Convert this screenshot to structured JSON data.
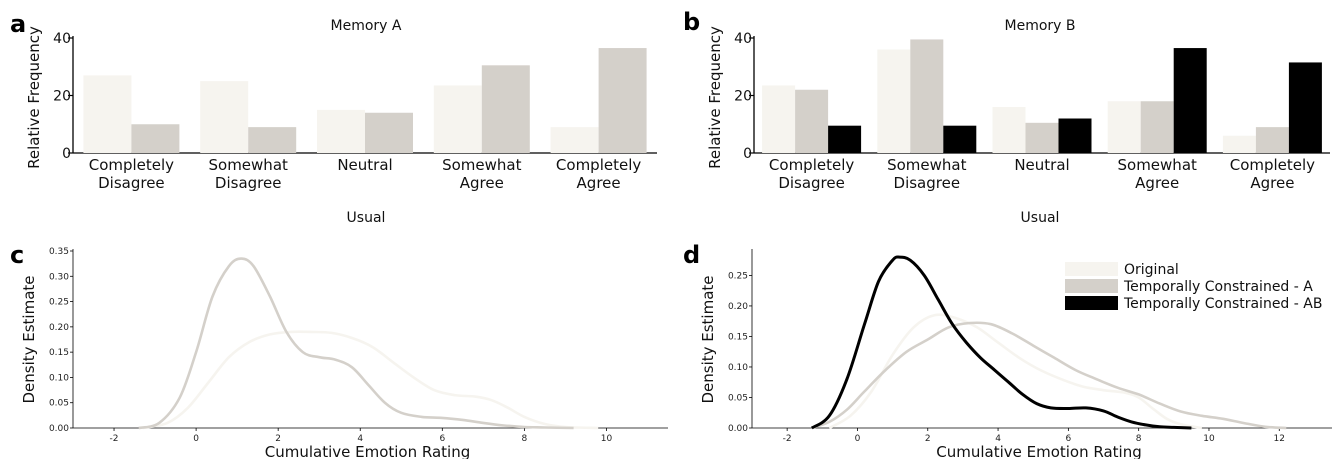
{
  "colors": {
    "original": "#f6f4ef",
    "constrained_a": "#d4d0ca",
    "constrained_ab": "#000000",
    "axis": "#000000"
  },
  "legend": [
    "Original",
    "Temporally Constrained - A",
    "Temporally Constrained - AB"
  ],
  "chart_data": [
    {
      "panel": "a",
      "type": "bar",
      "title": "Memory A",
      "xlabel": "",
      "ylabel": "Relative Frequency",
      "ylim": [
        0,
        40
      ],
      "yticks": [
        0,
        20,
        40
      ],
      "categories": [
        "Completely\nDisagree",
        "Somewhat\nDisagree",
        "Neutral",
        "Somewhat\nAgree",
        "Completely\nAgree"
      ],
      "series": [
        {
          "values": [
            27,
            25,
            15,
            23.5,
            9
          ]
        },
        {
          "values": [
            10,
            9,
            14,
            30.5,
            36.5
          ]
        }
      ]
    },
    {
      "panel": "b",
      "type": "bar",
      "title": "Memory B",
      "xlabel": "",
      "ylabel": "Relative Frequency",
      "ylim": [
        0,
        40
      ],
      "yticks": [
        0,
        20,
        40
      ],
      "categories": [
        "Completely\nDisagree",
        "Somewhat\nDisagree",
        "Neutral",
        "Somewhat\nAgree",
        "Completely\nAgree"
      ],
      "series": [
        {
          "values": [
            23.5,
            36,
            16,
            18,
            6
          ]
        },
        {
          "values": [
            22,
            39.5,
            10.5,
            18,
            9
          ]
        },
        {
          "values": [
            9.5,
            9.5,
            12,
            36.5,
            31.5
          ]
        }
      ]
    },
    {
      "panel": "c",
      "type": "line",
      "title": "Usual",
      "xlabel": "Cumulative Emotion Rating",
      "ylabel": "Density Estimate",
      "xlim": [
        -3,
        11.5
      ],
      "ylim": [
        0,
        0.35
      ],
      "xticks": [
        -2,
        0,
        2,
        4,
        6,
        8,
        10
      ],
      "yticks": [
        0.0,
        0.05,
        0.1,
        0.15,
        0.2,
        0.25,
        0.3,
        0.35
      ],
      "series": [
        {
          "x": [
            -1.3,
            -0.7,
            -0.2,
            0.3,
            0.8,
            1.3,
            1.8,
            2.3,
            2.8,
            3.3,
            3.8,
            4.3,
            4.8,
            5.3,
            5.8,
            6.3,
            6.8,
            7.2,
            7.6,
            8.0,
            8.5,
            9.0,
            9.8
          ],
          "y": [
            0.0,
            0.01,
            0.04,
            0.09,
            0.14,
            0.17,
            0.185,
            0.19,
            0.19,
            0.188,
            0.178,
            0.16,
            0.13,
            0.1,
            0.075,
            0.065,
            0.062,
            0.055,
            0.04,
            0.022,
            0.008,
            0.002,
            0.0
          ]
        },
        {
          "x": [
            -1.4,
            -0.9,
            -0.4,
            0.0,
            0.4,
            0.8,
            1.1,
            1.4,
            1.8,
            2.2,
            2.6,
            3.0,
            3.4,
            3.8,
            4.2,
            4.6,
            5.0,
            5.5,
            6.0,
            6.5,
            7.0,
            7.5,
            8.0,
            8.5,
            9.2
          ],
          "y": [
            0.0,
            0.01,
            0.06,
            0.15,
            0.26,
            0.32,
            0.335,
            0.32,
            0.26,
            0.19,
            0.15,
            0.14,
            0.135,
            0.12,
            0.085,
            0.05,
            0.03,
            0.022,
            0.02,
            0.016,
            0.01,
            0.005,
            0.002,
            0.001,
            0.0
          ]
        }
      ]
    },
    {
      "panel": "d",
      "type": "line",
      "title": "Usual",
      "xlabel": "Cumulative Emotion Rating",
      "ylabel": "Density Estimate",
      "xlim": [
        -3,
        13.5
      ],
      "ylim": [
        0,
        0.29
      ],
      "xticks": [
        -2,
        0,
        2,
        4,
        6,
        8,
        10,
        12
      ],
      "yticks": [
        0.0,
        0.05,
        0.1,
        0.15,
        0.2,
        0.25
      ],
      "series": [
        {
          "x": [
            -0.8,
            -0.2,
            0.4,
            1.0,
            1.6,
            2.2,
            2.8,
            3.4,
            4.0,
            4.6,
            5.2,
            5.8,
            6.4,
            7.0,
            7.6,
            8.0,
            8.4,
            8.8,
            9.2,
            9.8
          ],
          "y": [
            0.0,
            0.02,
            0.06,
            0.12,
            0.165,
            0.185,
            0.18,
            0.165,
            0.14,
            0.115,
            0.095,
            0.08,
            0.068,
            0.062,
            0.058,
            0.05,
            0.032,
            0.015,
            0.006,
            0.0
          ]
        },
        {
          "x": [
            -1.3,
            -0.8,
            -0.3,
            0.2,
            0.8,
            1.4,
            2.0,
            2.6,
            3.2,
            3.8,
            4.4,
            5.0,
            5.6,
            6.2,
            6.8,
            7.4,
            8.0,
            8.6,
            9.2,
            9.8,
            10.4,
            11.0,
            11.6,
            12.2
          ],
          "y": [
            0.0,
            0.01,
            0.03,
            0.06,
            0.095,
            0.125,
            0.145,
            0.165,
            0.172,
            0.17,
            0.155,
            0.135,
            0.115,
            0.095,
            0.08,
            0.066,
            0.055,
            0.04,
            0.027,
            0.02,
            0.015,
            0.008,
            0.002,
            0.0
          ]
        },
        {
          "x": [
            -1.3,
            -0.8,
            -0.3,
            0.2,
            0.6,
            1.0,
            1.2,
            1.5,
            1.9,
            2.3,
            2.7,
            3.1,
            3.5,
            3.9,
            4.3,
            4.7,
            5.1,
            5.5,
            6.0,
            6.5,
            7.0,
            7.4,
            7.8,
            8.2,
            8.6,
            9.0,
            9.5
          ],
          "y": [
            0.0,
            0.02,
            0.08,
            0.17,
            0.24,
            0.275,
            0.28,
            0.275,
            0.25,
            0.21,
            0.17,
            0.14,
            0.115,
            0.095,
            0.075,
            0.055,
            0.04,
            0.033,
            0.032,
            0.033,
            0.028,
            0.018,
            0.01,
            0.005,
            0.002,
            0.001,
            0.0
          ]
        }
      ]
    }
  ]
}
